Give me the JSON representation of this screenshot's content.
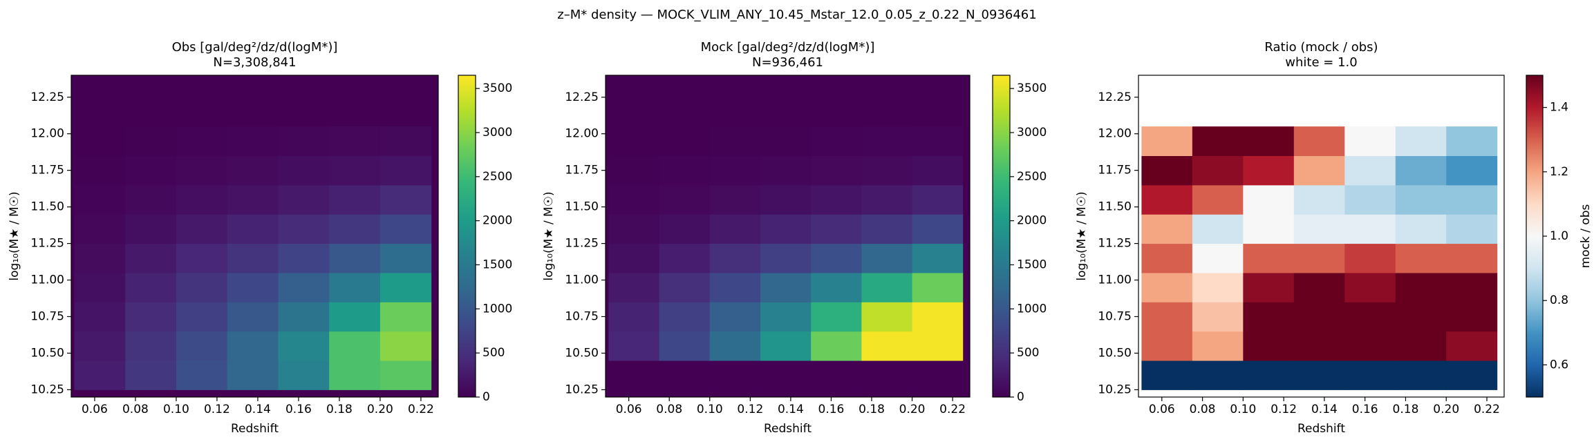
{
  "title": "z–M* density — MOCK_VLIM_ANY_10.45_Mstar_12.0_0.05_z_0.22_N_0936461",
  "chart_data": [
    {
      "type": "heatmap",
      "title": "Obs  [gal/deg²/dz/d(logM*)]",
      "subtitle": "N=3,308,841",
      "x_label": "Redshift",
      "y_label": "log₁₀(M★ / M☉)",
      "colormap": "viridis",
      "background": "#440154",
      "x_edges": [
        0.05,
        0.075,
        0.1,
        0.125,
        0.15,
        0.175,
        0.2,
        0.225
      ],
      "y_edges": [
        10.25,
        10.45,
        10.65,
        10.85,
        11.05,
        11.25,
        11.45,
        11.65,
        11.85,
        12.05
      ],
      "z": [
        [
          300,
          600,
          900,
          1200,
          1600,
          2600,
          2700
        ],
        [
          250,
          550,
          850,
          1200,
          1700,
          2600,
          3000
        ],
        [
          200,
          450,
          700,
          1000,
          1400,
          2000,
          2800
        ],
        [
          150,
          350,
          550,
          800,
          1100,
          1500,
          2000
        ],
        [
          100,
          250,
          400,
          550,
          750,
          1000,
          1300
        ],
        [
          60,
          150,
          250,
          350,
          450,
          600,
          800
        ],
        [
          30,
          80,
          130,
          180,
          250,
          330,
          450
        ],
        [
          10,
          30,
          60,
          90,
          120,
          160,
          200
        ],
        [
          0,
          10,
          20,
          30,
          50,
          60,
          80
        ]
      ],
      "zlim": [
        0,
        3650
      ],
      "zticks": [
        0,
        500,
        1000,
        1500,
        2000,
        2500,
        3000,
        3500
      ],
      "xlim": [
        0.0485,
        0.2285
      ],
      "xticks": [
        0.06,
        0.08,
        {
          "value": 0.1,
          "label": "0.10"
        },
        0.12,
        0.14,
        0.16,
        0.18,
        {
          "value": 0.2,
          "label": "0.20"
        },
        0.22
      ],
      "ylim": [
        10.2,
        12.4
      ],
      "yticks": [
        10.25,
        {
          "value": 10.5,
          "label": "10.50"
        },
        10.75,
        {
          "value": 11,
          "label": "11.00"
        },
        11.25,
        {
          "value": 11.5,
          "label": "11.50"
        },
        11.75,
        {
          "value": 12,
          "label": "12.00"
        },
        12.25
      ]
    },
    {
      "type": "heatmap",
      "title": "Mock  [gal/deg²/dz/d(logM*)]",
      "subtitle": "N=936,461",
      "x_label": "Redshift",
      "y_label": "log₁₀(M★ / M☉)",
      "colormap": "viridis",
      "background": "#440154",
      "x_edges": [
        0.05,
        0.075,
        0.1,
        0.125,
        0.15,
        0.175,
        0.2,
        0.225
      ],
      "y_edges": [
        10.25,
        10.45,
        10.65,
        10.85,
        11.05,
        11.25,
        11.45,
        11.65,
        11.85,
        12.05
      ],
      "z": [
        [
          0,
          0,
          0,
          0,
          0,
          0,
          0
        ],
        [
          400,
          800,
          1300,
          1900,
          2800,
          3600,
          3600
        ],
        [
          350,
          700,
          1100,
          1600,
          2300,
          3300,
          3600
        ],
        [
          250,
          500,
          800,
          1200,
          1600,
          2200,
          2800
        ],
        [
          150,
          300,
          500,
          700,
          900,
          1200,
          1600
        ],
        [
          80,
          150,
          250,
          350,
          450,
          600,
          800
        ],
        [
          30,
          60,
          100,
          150,
          200,
          250,
          350
        ],
        [
          10,
          20,
          30,
          50,
          70,
          90,
          120
        ],
        [
          0,
          0,
          10,
          10,
          20,
          30,
          40
        ]
      ],
      "zlim": [
        0,
        3650
      ],
      "zticks": [
        0,
        500,
        1000,
        1500,
        2000,
        2500,
        3000,
        3500
      ],
      "xlim": [
        0.0485,
        0.2285
      ],
      "xticks": [
        0.06,
        0.08,
        {
          "value": 0.1,
          "label": "0.10"
        },
        0.12,
        0.14,
        0.16,
        0.18,
        {
          "value": 0.2,
          "label": "0.20"
        },
        0.22
      ],
      "ylim": [
        10.2,
        12.4
      ],
      "yticks": [
        10.25,
        {
          "value": 10.5,
          "label": "10.50"
        },
        10.75,
        {
          "value": 11,
          "label": "11.00"
        },
        11.25,
        {
          "value": 11.5,
          "label": "11.50"
        },
        11.75,
        {
          "value": 12,
          "label": "12.00"
        },
        12.25
      ]
    },
    {
      "type": "heatmap",
      "title": "Ratio (mock / obs)",
      "subtitle": "white = 1.0",
      "x_label": "Redshift",
      "y_label": "log₁₀(M★ / M☉)",
      "colormap": "RdBu_r",
      "background": "#ffffff",
      "colorbar_label": "mock / obs",
      "x_edges": [
        0.05,
        0.075,
        0.1,
        0.125,
        0.15,
        0.175,
        0.2,
        0.225
      ],
      "y_edges": [
        10.25,
        10.45,
        10.65,
        10.85,
        11.05,
        11.25,
        11.45,
        11.65,
        11.85,
        12.05
      ],
      "z": [
        [
          0.5,
          0.5,
          0.5,
          0.5,
          0.5,
          0.5,
          0.5
        ],
        [
          1.3,
          1.2,
          1.5,
          1.5,
          1.5,
          1.5,
          1.45
        ],
        [
          1.3,
          1.15,
          1.5,
          1.5,
          1.5,
          1.5,
          1.5
        ],
        [
          1.2,
          1.1,
          1.45,
          1.5,
          1.45,
          1.5,
          1.5
        ],
        [
          1.3,
          1.0,
          1.3,
          1.3,
          1.35,
          1.3,
          1.3
        ],
        [
          1.2,
          0.9,
          1.0,
          0.95,
          0.95,
          0.9,
          0.85
        ],
        [
          1.4,
          1.3,
          1.0,
          0.9,
          0.85,
          0.8,
          0.8
        ],
        [
          1.5,
          1.45,
          1.4,
          1.2,
          0.9,
          0.75,
          0.7
        ],
        [
          1.2,
          1.5,
          1.5,
          1.3,
          1.0,
          0.9,
          0.8
        ]
      ],
      "zlim": [
        0.5,
        1.5
      ],
      "zticks": [
        0.6,
        0.8,
        {
          "value": 1,
          "label": "1.0"
        },
        1.2,
        1.4
      ],
      "xlim": [
        0.0485,
        0.2285
      ],
      "xticks": [
        0.06,
        0.08,
        {
          "value": 0.1,
          "label": "0.10"
        },
        0.12,
        0.14,
        0.16,
        0.18,
        {
          "value": 0.2,
          "label": "0.20"
        },
        0.22
      ],
      "ylim": [
        10.2,
        12.4
      ],
      "yticks": [
        10.25,
        {
          "value": 10.5,
          "label": "10.50"
        },
        10.75,
        {
          "value": 11,
          "label": "11.00"
        },
        11.25,
        {
          "value": 11.5,
          "label": "11.50"
        },
        11.75,
        {
          "value": 12,
          "label": "12.00"
        },
        12.25
      ]
    }
  ]
}
